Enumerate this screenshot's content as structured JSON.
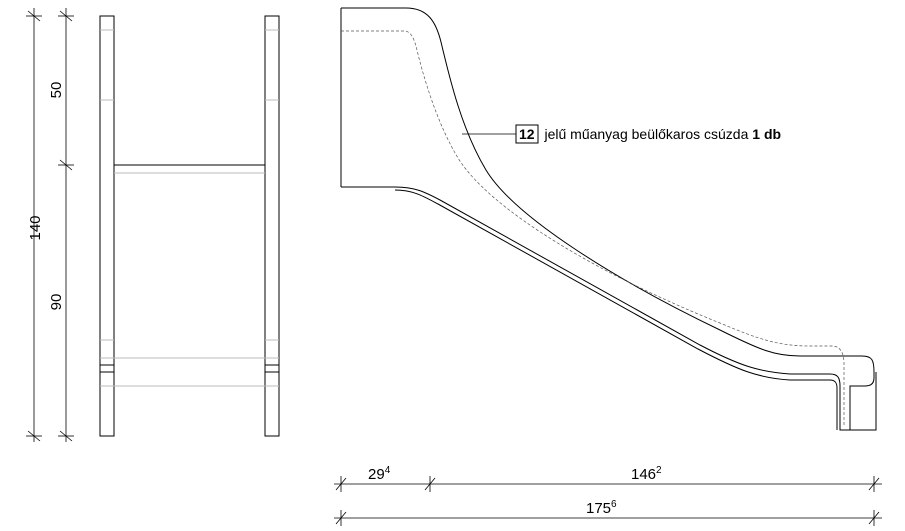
{
  "front_view": {
    "dim_total": "140",
    "dim_upper": "50",
    "dim_lower": "90"
  },
  "side_view": {
    "dim_entry_base": "29",
    "dim_entry_sup": "4",
    "dim_run_base": "146",
    "dim_run_sup": "2",
    "dim_total_base": "175",
    "dim_total_sup": "6"
  },
  "callout": {
    "number": "12",
    "text_prefix": " jelű műanyag beülőkaros csúzda ",
    "text_bold": "1 db"
  }
}
